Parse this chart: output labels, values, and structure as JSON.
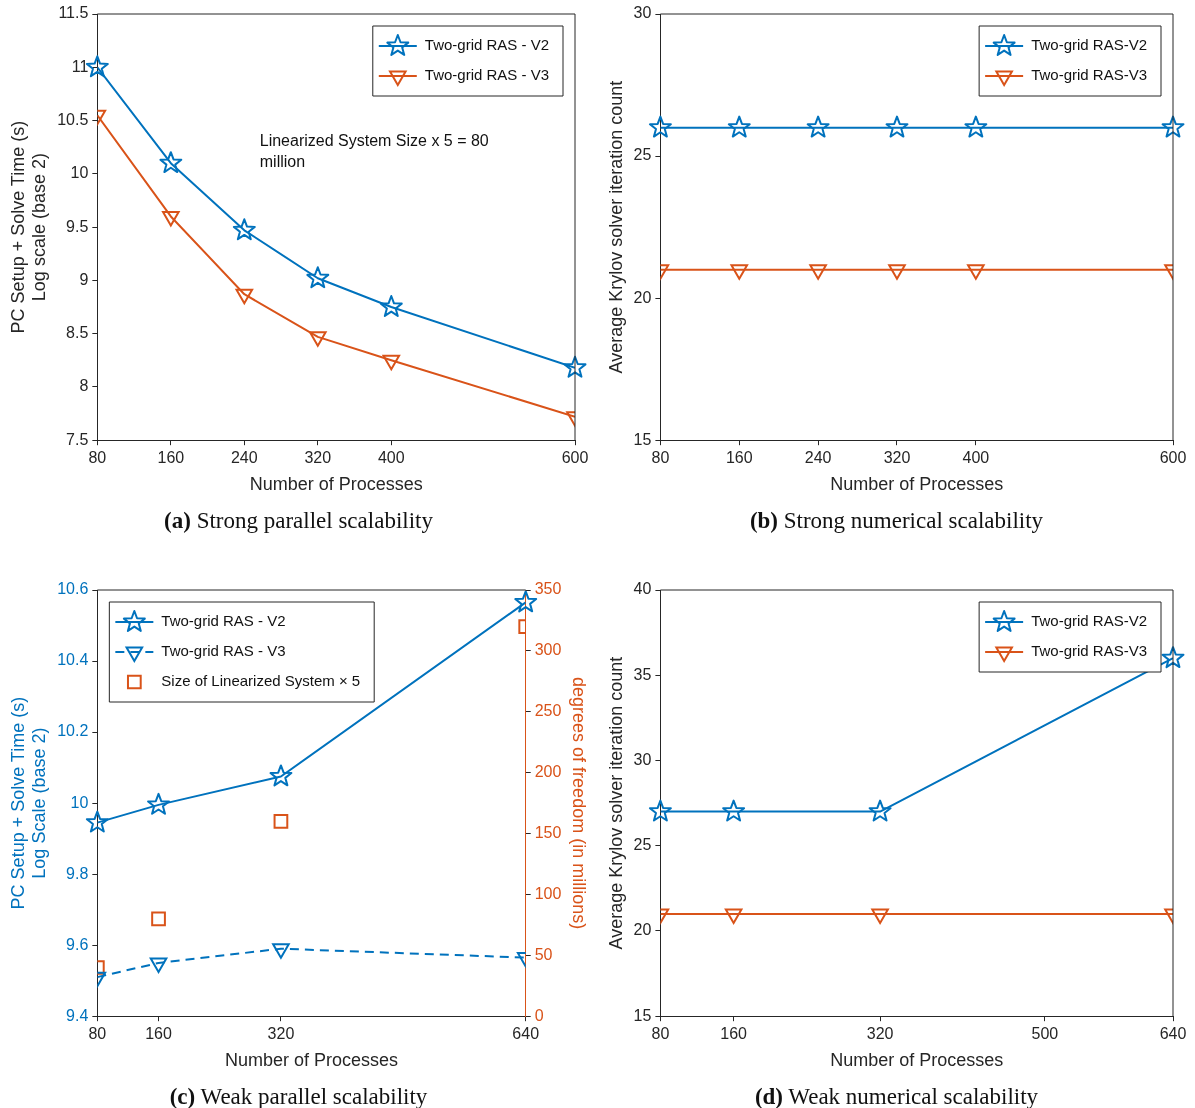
{
  "chart_data": [
    {
      "type": "line",
      "title": "(a) Strong parallel scalability",
      "xlabel": "Number of Processes",
      "ylabel": "PC Setup + Solve Time (s)\nLog scale (base 2)",
      "x": [
        80,
        160,
        240,
        320,
        400,
        600
      ],
      "xlim": [
        80,
        600
      ],
      "xticks": [
        80,
        160,
        240,
        320,
        400,
        600
      ],
      "ylim": [
        7.5,
        11.5
      ],
      "yticks": [
        7.5,
        8,
        8.5,
        9,
        9.5,
        10,
        10.5,
        11,
        11.5
      ],
      "grid": false,
      "legend": "top right",
      "annotations": [
        "Linearized System Size x 5 = 80 million"
      ],
      "series": [
        {
          "name": "Two-grid RAS - V2",
          "color": "#0072bd",
          "marker": "star",
          "values": [
            11.0,
            10.1,
            9.47,
            9.02,
            8.75,
            8.18
          ]
        },
        {
          "name": "Two-grid RAS - V3",
          "color": "#d95319",
          "marker": "triangle",
          "values": [
            10.55,
            9.6,
            8.87,
            8.47,
            8.25,
            7.72
          ]
        }
      ]
    },
    {
      "type": "line",
      "title": "(b) Strong numerical scalability",
      "xlabel": "Number of Processes",
      "ylabel": "Average Krylov solver iteration count",
      "x": [
        80,
        160,
        240,
        320,
        400,
        600
      ],
      "xlim": [
        80,
        600
      ],
      "xticks": [
        80,
        160,
        240,
        320,
        400,
        600
      ],
      "ylim": [
        15,
        30
      ],
      "yticks": [
        15,
        20,
        25,
        30
      ],
      "grid": false,
      "legend": "top right",
      "series": [
        {
          "name": "Two-grid RAS-V2",
          "color": "#0072bd",
          "marker": "star",
          "values": [
            26,
            26,
            26,
            26,
            26,
            26
          ]
        },
        {
          "name": "Two-grid RAS-V3",
          "color": "#d95319",
          "marker": "triangle",
          "values": [
            21,
            21,
            21,
            21,
            21,
            21
          ]
        }
      ]
    },
    {
      "type": "line",
      "title": "(c) Weak parallel scalability",
      "xlabel": "Number of Processes",
      "ylabel": "PC Setup + Solve Time (s)\nLog Scale (base 2)",
      "y2label": "degrees of freedom (in millions)",
      "x": [
        80,
        160,
        320,
        640
      ],
      "xlim": [
        80,
        640
      ],
      "xticks": [
        80,
        160,
        320,
        640
      ],
      "ylim": [
        9.4,
        10.6
      ],
      "yticks": [
        9.4,
        9.6,
        9.8,
        10,
        10.2,
        10.4,
        10.6
      ],
      "y2lim": [
        0,
        350
      ],
      "y2ticks": [
        0,
        50,
        100,
        150,
        200,
        250,
        300,
        350
      ],
      "grid": false,
      "legend": "top left",
      "series": [
        {
          "name": "Two-grid RAS - V2",
          "color": "#0072bd",
          "marker": "star",
          "values": [
            9.945,
            9.995,
            10.075,
            10.565
          ]
        },
        {
          "name": "Two-grid RAS - V3",
          "color": "#0072bd",
          "marker": "triangle",
          "line_style": "dashed",
          "values": [
            9.51,
            9.55,
            9.59,
            9.565
          ]
        },
        {
          "name": "Size of Linearized System × 5",
          "type": "scatter",
          "axis": "y2",
          "color": "#d95319",
          "marker": "square",
          "values": [
            40,
            80,
            160,
            320
          ]
        }
      ]
    },
    {
      "type": "line",
      "title": "(d) Weak numerical scalability",
      "xlabel": "Number of Processes",
      "ylabel": "Average Krylov solver iteration count",
      "x": [
        80,
        160,
        320,
        640
      ],
      "xlim": [
        80,
        640
      ],
      "xticks": [
        80,
        160,
        320,
        500,
        640
      ],
      "ylim": [
        15,
        40
      ],
      "yticks": [
        15,
        20,
        25,
        30,
        35,
        40
      ],
      "grid": false,
      "legend": "top right",
      "series": [
        {
          "name": "Two-grid RAS-V2",
          "color": "#0072bd",
          "marker": "star",
          "values": [
            27,
            27,
            27,
            36
          ]
        },
        {
          "name": "Two-grid RAS-V3",
          "color": "#d95319",
          "marker": "triangle",
          "values": [
            21,
            21,
            21,
            21
          ]
        }
      ]
    }
  ]
}
